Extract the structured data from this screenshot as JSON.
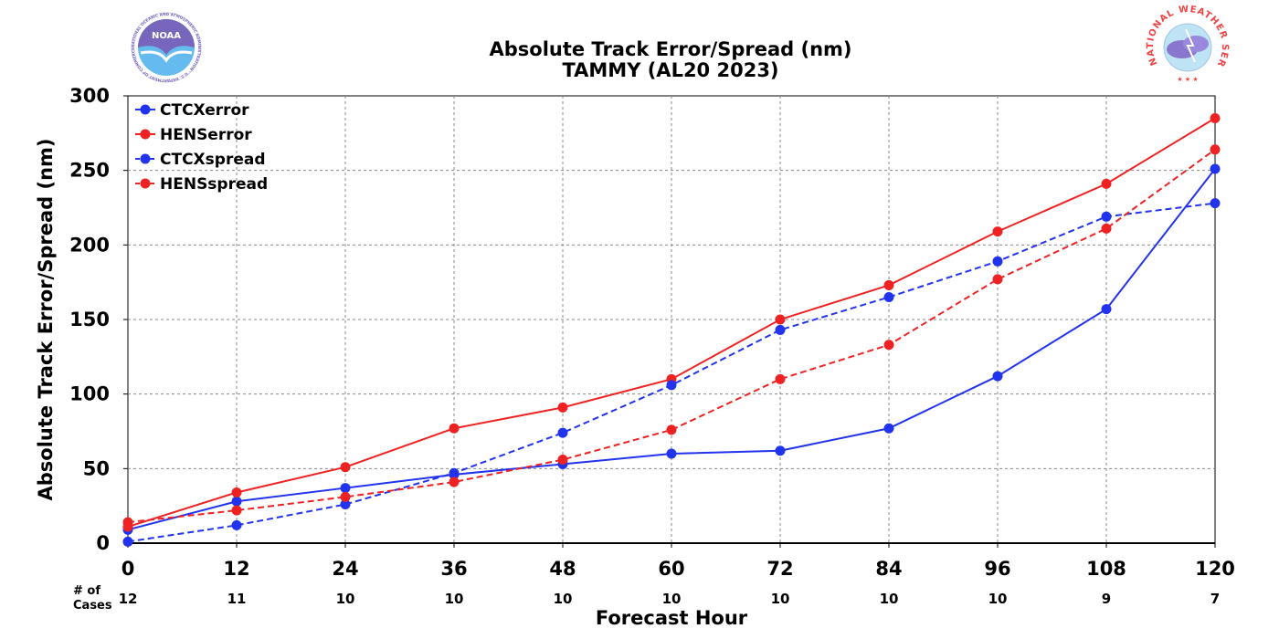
{
  "chart_data": {
    "type": "line",
    "title": "Absolute Track Error/Spread (nm)",
    "subtitle": "TAMMY (AL20 2023)",
    "xlabel": "Forecast Hour",
    "ylabel": "Absolute Track Error/Spread (nm)",
    "x": [
      0,
      12,
      24,
      36,
      48,
      60,
      72,
      84,
      96,
      108,
      120
    ],
    "xlim": [
      0,
      120
    ],
    "ylim": [
      0,
      300
    ],
    "yticks": [
      0,
      50,
      100,
      150,
      200,
      250,
      300
    ],
    "grid": true,
    "legend_position": "top-left",
    "cases_label": "# of\nCases",
    "cases_label_lines": [
      "# of",
      "Cases"
    ],
    "cases": [
      12,
      11,
      10,
      10,
      10,
      10,
      10,
      10,
      10,
      9,
      7
    ],
    "series": [
      {
        "name": "CTCXerror",
        "color": "#2233ee",
        "dash": "solid",
        "values": [
          9,
          28,
          37,
          46,
          53,
          60,
          62,
          77,
          112,
          157,
          251
        ]
      },
      {
        "name": "HENSerror",
        "color": "#ee2222",
        "dash": "solid",
        "values": [
          11,
          34,
          51,
          77,
          91,
          110,
          150,
          173,
          209,
          241,
          285
        ]
      },
      {
        "name": "CTCXspread",
        "color": "#2233ee",
        "dash": "dashed",
        "values": [
          1,
          12,
          26,
          47,
          74,
          106,
          143,
          165,
          189,
          219,
          228
        ]
      },
      {
        "name": "HENSspread",
        "color": "#ee2222",
        "dash": "dashed",
        "values": [
          14,
          22,
          31,
          41,
          56,
          76,
          110,
          133,
          177,
          211,
          264
        ]
      }
    ]
  },
  "logos": {
    "noaa": {
      "text": "NOAA",
      "ring_text": "NATIONAL OCEANIC AND ATMOSPHERIC ADMINISTRATION · U.S. DEPARTMENT OF COMMERCE"
    },
    "nws": {
      "ring_text": "NATIONAL WEATHER SERVICE"
    }
  },
  "colors": {
    "blue": "#2233ee",
    "red": "#ee2222",
    "grid": "#888888"
  }
}
